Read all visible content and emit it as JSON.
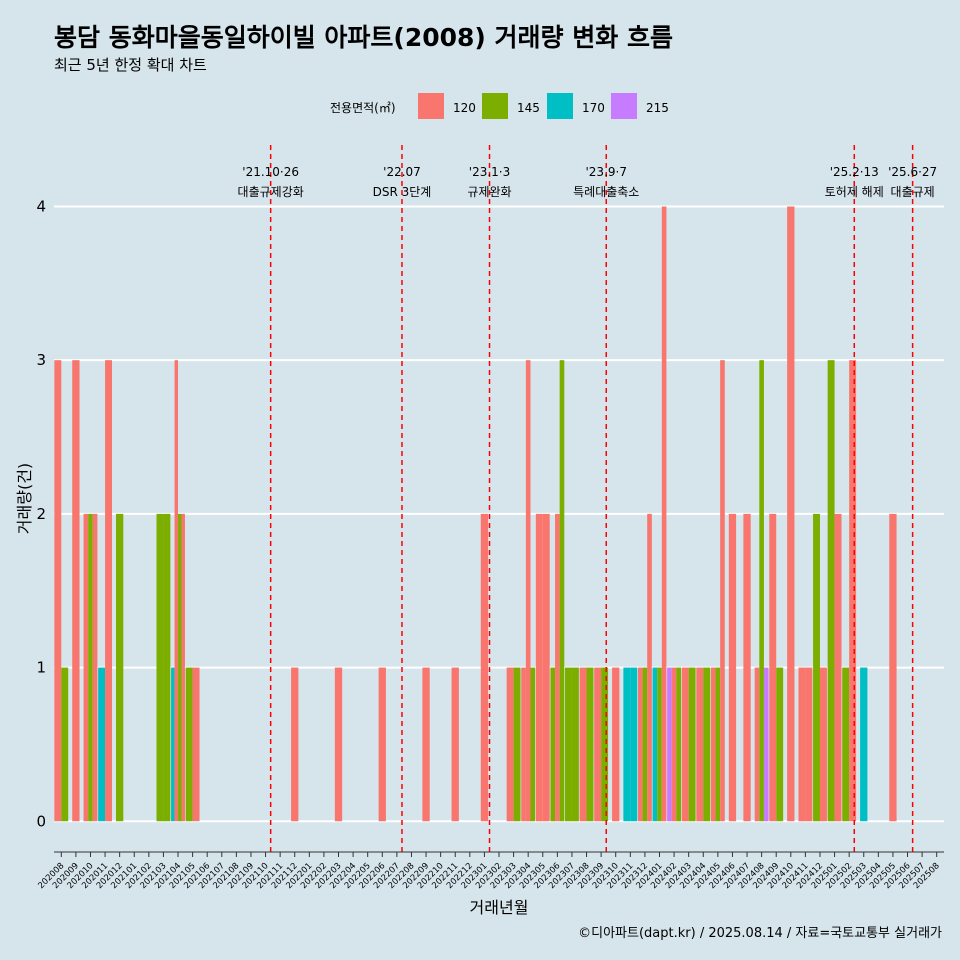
{
  "title": "봉담 동화마을동일하이빌 아파트(2008) 거래량 변화 흐름",
  "subtitle": "최근 5년 한정 확대 차트",
  "caption": "©디아파트(dapt.kr) / 2025.08.14 / 자료=국토교통부 실거래가",
  "chart_data": {
    "type": "bar",
    "xlabel": "거래년월",
    "ylabel": "거래량(건)",
    "ylim": [
      -0.2,
      4.4
    ],
    "yticks": [
      0,
      1,
      2,
      3,
      4
    ],
    "grid": true,
    "legend": {
      "title": "전용면적(㎡)",
      "position": "top",
      "entries": [
        {
          "name": "120",
          "color": "#f8766d"
        },
        {
          "name": "145",
          "color": "#7cae00"
        },
        {
          "name": "170",
          "color": "#00bfc4"
        },
        {
          "name": "215",
          "color": "#c77cff"
        }
      ]
    },
    "categories": [
      "202008",
      "202009",
      "202010",
      "202011",
      "202012",
      "202101",
      "202102",
      "202103",
      "202104",
      "202105",
      "202106",
      "202107",
      "202108",
      "202109",
      "202110",
      "202111",
      "202112",
      "202201",
      "202202",
      "202203",
      "202204",
      "202205",
      "202206",
      "202207",
      "202208",
      "202209",
      "202210",
      "202211",
      "202212",
      "202301",
      "202302",
      "202303",
      "202304",
      "202305",
      "202306",
      "202307",
      "202308",
      "202309",
      "202310",
      "202311",
      "202312",
      "202401",
      "202402",
      "202403",
      "202404",
      "202405",
      "202406",
      "202407",
      "202408",
      "202409",
      "202410",
      "202411",
      "202412",
      "202501",
      "202502",
      "202503",
      "202504",
      "202505",
      "202506",
      "202507",
      "202508"
    ],
    "months": [
      {
        "month": "202008",
        "bars": [
          {
            "area": "120",
            "count": 3
          },
          {
            "area": "145",
            "count": 1
          }
        ]
      },
      {
        "month": "202009",
        "bars": [
          {
            "area": "120",
            "count": 3
          }
        ]
      },
      {
        "month": "202010",
        "bars": [
          {
            "area": "120",
            "count": 2
          },
          {
            "area": "145",
            "count": 2
          },
          {
            "area": "120",
            "count": 2
          }
        ]
      },
      {
        "month": "202011",
        "bars": [
          {
            "area": "170",
            "count": 1
          },
          {
            "area": "120",
            "count": 3
          }
        ]
      },
      {
        "month": "202012",
        "bars": [
          {
            "area": "145",
            "count": 2
          }
        ]
      },
      {
        "month": "202101",
        "bars": []
      },
      {
        "month": "202102",
        "bars": []
      },
      {
        "month": "202103",
        "bars": [
          {
            "area": "145",
            "count": 2
          },
          {
            "area": "145",
            "count": 2
          }
        ]
      },
      {
        "month": "202104",
        "bars": [
          {
            "area": "170",
            "count": 1
          },
          {
            "area": "120",
            "count": 3
          },
          {
            "area": "145",
            "count": 2
          },
          {
            "area": "120",
            "count": 2
          }
        ]
      },
      {
        "month": "202105",
        "bars": [
          {
            "area": "145",
            "count": 1
          },
          {
            "area": "120",
            "count": 1
          }
        ]
      },
      {
        "month": "202106",
        "bars": []
      },
      {
        "month": "202107",
        "bars": []
      },
      {
        "month": "202108",
        "bars": []
      },
      {
        "month": "202109",
        "bars": []
      },
      {
        "month": "202110",
        "bars": []
      },
      {
        "month": "202111",
        "bars": []
      },
      {
        "month": "202112",
        "bars": [
          {
            "area": "120",
            "count": 1
          }
        ]
      },
      {
        "month": "202201",
        "bars": []
      },
      {
        "month": "202202",
        "bars": []
      },
      {
        "month": "202203",
        "bars": [
          {
            "area": "120",
            "count": 1
          }
        ]
      },
      {
        "month": "202204",
        "bars": []
      },
      {
        "month": "202205",
        "bars": []
      },
      {
        "month": "202206",
        "bars": [
          {
            "area": "120",
            "count": 1
          }
        ]
      },
      {
        "month": "202207",
        "bars": []
      },
      {
        "month": "202208",
        "bars": []
      },
      {
        "month": "202209",
        "bars": [
          {
            "area": "120",
            "count": 1
          }
        ]
      },
      {
        "month": "202210",
        "bars": []
      },
      {
        "month": "202211",
        "bars": [
          {
            "area": "120",
            "count": 1
          }
        ]
      },
      {
        "month": "202212",
        "bars": []
      },
      {
        "month": "202301",
        "bars": [
          {
            "area": "120",
            "count": 2
          }
        ]
      },
      {
        "month": "202302",
        "bars": []
      },
      {
        "month": "202303",
        "bars": [
          {
            "area": "120",
            "count": 1
          },
          {
            "area": "145",
            "count": 1
          }
        ]
      },
      {
        "month": "202304",
        "bars": [
          {
            "area": "120",
            "count": 1
          },
          {
            "area": "120",
            "count": 3
          },
          {
            "area": "145",
            "count": 1
          }
        ]
      },
      {
        "month": "202305",
        "bars": [
          {
            "area": "120",
            "count": 2
          },
          {
            "area": "120",
            "count": 2
          }
        ]
      },
      {
        "month": "202306",
        "bars": [
          {
            "area": "145",
            "count": 1
          },
          {
            "area": "120",
            "count": 2
          },
          {
            "area": "145",
            "count": 3
          }
        ]
      },
      {
        "month": "202307",
        "bars": [
          {
            "area": "145",
            "count": 1
          },
          {
            "area": "145",
            "count": 1
          }
        ]
      },
      {
        "month": "202308",
        "bars": [
          {
            "area": "120",
            "count": 1
          },
          {
            "area": "145",
            "count": 1
          }
        ]
      },
      {
        "month": "202309",
        "bars": [
          {
            "area": "120",
            "count": 1
          },
          {
            "area": "145",
            "count": 1
          }
        ]
      },
      {
        "month": "202310",
        "bars": [
          {
            "area": "120",
            "count": 1
          }
        ]
      },
      {
        "month": "202311",
        "bars": [
          {
            "area": "170",
            "count": 1
          },
          {
            "area": "170",
            "count": 1
          }
        ]
      },
      {
        "month": "202312",
        "bars": [
          {
            "area": "120",
            "count": 1
          },
          {
            "area": "145",
            "count": 1
          },
          {
            "area": "120",
            "count": 2
          }
        ]
      },
      {
        "month": "202401",
        "bars": [
          {
            "area": "170",
            "count": 1
          },
          {
            "area": "145",
            "count": 1
          },
          {
            "area": "120",
            "count": 4
          }
        ]
      },
      {
        "month": "202402",
        "bars": [
          {
            "area": "215",
            "count": 1
          },
          {
            "area": "120",
            "count": 1
          },
          {
            "area": "145",
            "count": 1
          }
        ]
      },
      {
        "month": "202403",
        "bars": [
          {
            "area": "120",
            "count": 1
          },
          {
            "area": "145",
            "count": 1
          }
        ]
      },
      {
        "month": "202404",
        "bars": [
          {
            "area": "120",
            "count": 1
          },
          {
            "area": "145",
            "count": 1
          }
        ]
      },
      {
        "month": "202405",
        "bars": [
          {
            "area": "120",
            "count": 1
          },
          {
            "area": "145",
            "count": 1
          },
          {
            "area": "120",
            "count": 3
          }
        ]
      },
      {
        "month": "202406",
        "bars": [
          {
            "area": "120",
            "count": 2
          }
        ]
      },
      {
        "month": "202407",
        "bars": [
          {
            "area": "120",
            "count": 2
          }
        ]
      },
      {
        "month": "202408",
        "bars": [
          {
            "area": "120",
            "count": 1
          },
          {
            "area": "145",
            "count": 3
          },
          {
            "area": "215",
            "count": 1
          }
        ]
      },
      {
        "month": "202409",
        "bars": [
          {
            "area": "120",
            "count": 2
          },
          {
            "area": "145",
            "count": 1
          }
        ]
      },
      {
        "month": "202410",
        "bars": [
          {
            "area": "120",
            "count": 4
          }
        ]
      },
      {
        "month": "202411",
        "bars": [
          {
            "area": "120",
            "count": 1
          },
          {
            "area": "120",
            "count": 1
          }
        ]
      },
      {
        "month": "202412",
        "bars": [
          {
            "area": "145",
            "count": 2
          },
          {
            "area": "120",
            "count": 1
          }
        ]
      },
      {
        "month": "202501",
        "bars": [
          {
            "area": "145",
            "count": 3
          },
          {
            "area": "120",
            "count": 2
          }
        ]
      },
      {
        "month": "202502",
        "bars": [
          {
            "area": "145",
            "count": 1
          },
          {
            "area": "120",
            "count": 3
          }
        ]
      },
      {
        "month": "202503",
        "bars": [
          {
            "area": "170",
            "count": 1
          }
        ]
      },
      {
        "month": "202504",
        "bars": []
      },
      {
        "month": "202505",
        "bars": [
          {
            "area": "120",
            "count": 2
          }
        ]
      },
      {
        "month": "202506",
        "bars": []
      },
      {
        "month": "202507",
        "bars": []
      },
      {
        "month": "202508",
        "bars": []
      }
    ],
    "annotations": [
      {
        "date_label": "'21.10·26",
        "text": "대출규제강화",
        "month": "202110"
      },
      {
        "date_label": "'22.07",
        "text": "DSR 3단계",
        "month": "202207"
      },
      {
        "date_label": "'23.1·3",
        "text": "규제완화",
        "month": "202301"
      },
      {
        "date_label": "'23.9·7",
        "text": "특례대출축소",
        "month": "202309"
      },
      {
        "date_label": "'25.2·13",
        "text": "토허제 해제",
        "month": "202502"
      },
      {
        "date_label": "'25.6·27",
        "text": "대출규제",
        "month": "202506"
      }
    ]
  }
}
